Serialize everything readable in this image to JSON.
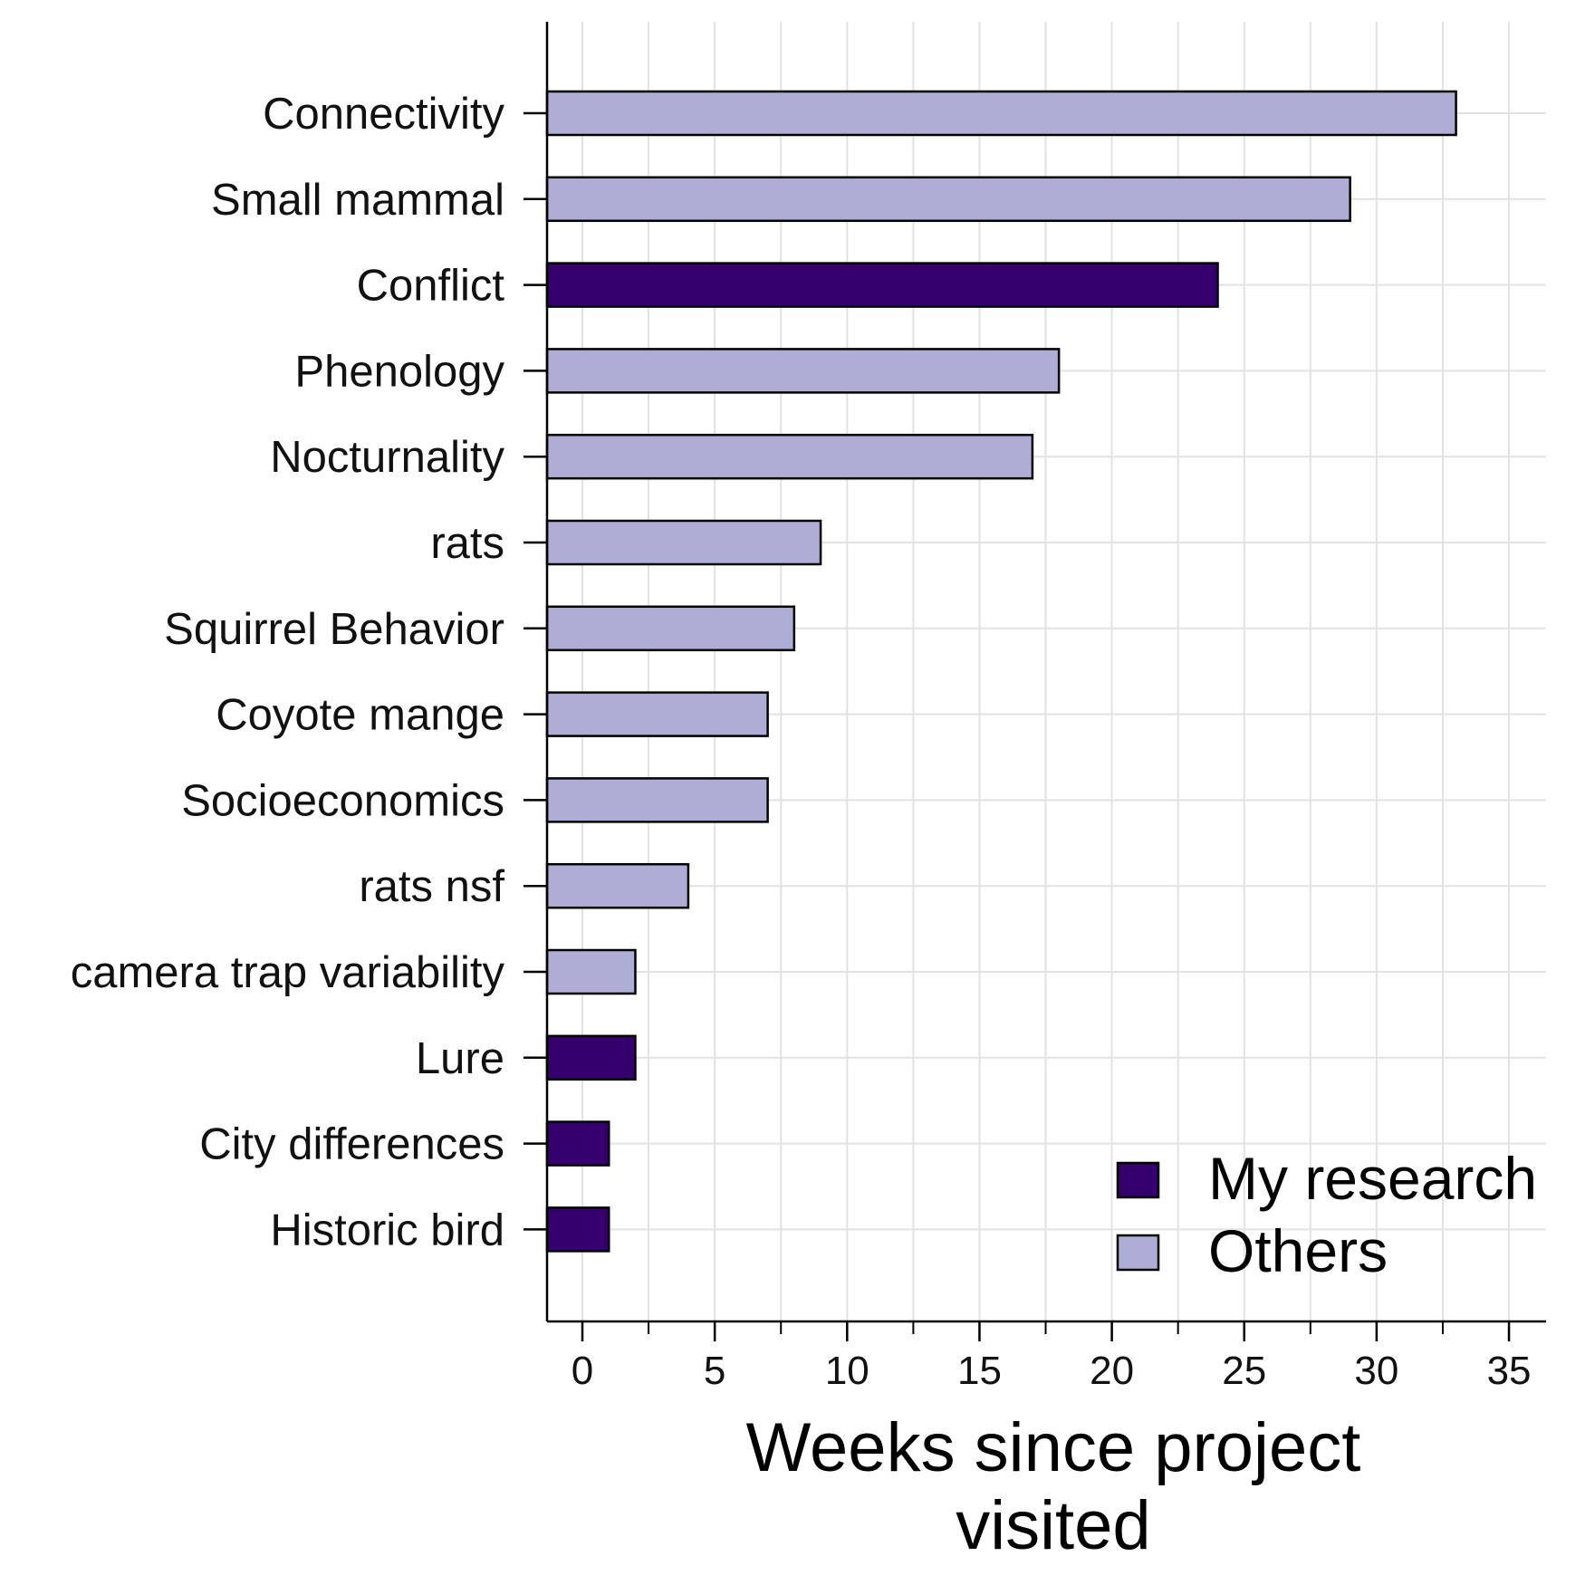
{
  "chart_data": {
    "type": "bar",
    "orientation": "horizontal",
    "title": "",
    "xlabel": "Weeks since project visited",
    "ylabel": "",
    "xlim": [
      -1.4,
      36.4
    ],
    "xticks": [
      0,
      5,
      10,
      15,
      20,
      25,
      30,
      35
    ],
    "grid": true,
    "legend_position": "bottom-right",
    "categories": [
      "Connectivity",
      "Small mammal",
      "Conflict",
      "Phenology",
      "Nocturnality",
      "rats",
      "Squirrel Behavior",
      "Coyote mange",
      "Socioeconomics",
      "rats nsf",
      "camera trap variability",
      "Lure",
      "City differences",
      "Historic bird"
    ],
    "values": [
      33,
      29,
      24,
      18,
      17,
      9,
      8,
      7,
      7,
      4,
      2,
      2,
      1,
      1
    ],
    "groups": [
      "Others",
      "Others",
      "My research",
      "Others",
      "Others",
      "Others",
      "Others",
      "Others",
      "Others",
      "Others",
      "Others",
      "My research",
      "My research",
      "My research"
    ],
    "legend": [
      {
        "name": "My research",
        "color": "#35006d"
      },
      {
        "name": "Others",
        "color": "#adadd5"
      }
    ]
  }
}
